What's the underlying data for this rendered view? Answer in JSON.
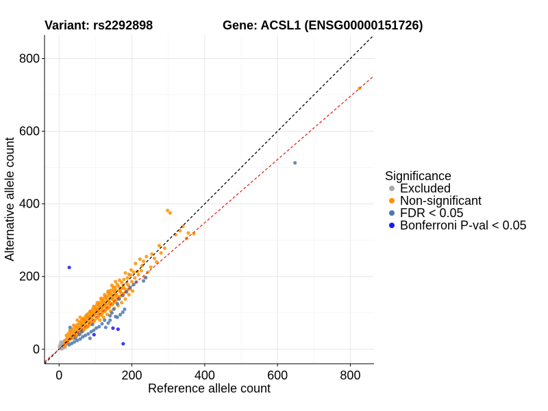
{
  "chart_data": {
    "type": "scatter",
    "title_variant": "Variant: rs2292898",
    "title_gene": "Gene: ACSL1 (ENSG00000151726)",
    "xlabel": "Reference allele count",
    "ylabel": "Alternative allele count",
    "xlim": [
      -40,
      865
    ],
    "ylim": [
      -40,
      865
    ],
    "xticks": [
      0,
      200,
      400,
      600,
      800
    ],
    "yticks": [
      0,
      200,
      400,
      600,
      800
    ],
    "grid": true,
    "reference_lines": [
      {
        "name": "identity",
        "slope": 1.0,
        "intercept": 0,
        "color": "#000000",
        "style": "dashed"
      },
      {
        "name": "fit",
        "slope": 0.87,
        "intercept": 0,
        "color": "#e3241b",
        "style": "dashed"
      }
    ],
    "legend": {
      "title": "Significance",
      "position": "right",
      "entries": [
        {
          "label": "Excluded",
          "color": "#aaaaaa"
        },
        {
          "label": "Non-significant",
          "color": "#ff9100"
        },
        {
          "label": "FDR < 0.05",
          "color": "#4a78b0"
        },
        {
          "label": "Bonferroni P-val < 0.05",
          "color": "#1a1aee"
        }
      ]
    },
    "series": [
      {
        "name": "Excluded",
        "color": "#aaaaaa",
        "points": [
          [
            2,
            3
          ],
          [
            4,
            6
          ],
          [
            6,
            2
          ],
          [
            8,
            10
          ],
          [
            10,
            5
          ],
          [
            12,
            14
          ],
          [
            14,
            9
          ],
          [
            3,
            12
          ],
          [
            16,
            18
          ],
          [
            18,
            12
          ],
          [
            5,
            20
          ],
          [
            20,
            22
          ],
          [
            7,
            1
          ],
          [
            22,
            15
          ],
          [
            1,
            8
          ],
          [
            9,
            16
          ],
          [
            11,
            3
          ],
          [
            13,
            21
          ],
          [
            17,
            6
          ],
          [
            19,
            25
          ]
        ]
      },
      {
        "name": "Non-significant",
        "color": "#ff9100",
        "points": [
          [
            825,
            718
          ],
          [
            370,
            318
          ],
          [
            355,
            320
          ],
          [
            350,
            305
          ],
          [
            305,
            375
          ],
          [
            298,
            382
          ],
          [
            275,
            285
          ],
          [
            262,
            250
          ],
          [
            255,
            262
          ],
          [
            240,
            255
          ],
          [
            232,
            242
          ],
          [
            228,
            230
          ],
          [
            222,
            248
          ],
          [
            215,
            214
          ],
          [
            210,
            236
          ],
          [
            205,
            212
          ],
          [
            198,
            218
          ],
          [
            196,
            204
          ],
          [
            192,
            206
          ],
          [
            188,
            196
          ],
          [
            186,
            182
          ],
          [
            182,
            210
          ],
          [
            178,
            192
          ],
          [
            176,
            175
          ],
          [
            172,
            184
          ],
          [
            170,
            166
          ],
          [
            168,
            158
          ],
          [
            166,
            190
          ],
          [
            164,
            172
          ],
          [
            160,
            178
          ],
          [
            158,
            150
          ],
          [
            156,
            162
          ],
          [
            154,
            170
          ],
          [
            152,
            146
          ],
          [
            150,
            158
          ],
          [
            148,
            172
          ],
          [
            146,
            138
          ],
          [
            144,
            150
          ],
          [
            142,
            162
          ],
          [
            140,
            140
          ],
          [
            138,
            130
          ],
          [
            136,
            148
          ],
          [
            134,
            156
          ],
          [
            132,
            124
          ],
          [
            130,
            138
          ],
          [
            128,
            146
          ],
          [
            126,
            120
          ],
          [
            124,
            130
          ],
          [
            122,
            140
          ],
          [
            120,
            114
          ],
          [
            118,
            126
          ],
          [
            116,
            136
          ],
          [
            114,
            108
          ],
          [
            112,
            118
          ],
          [
            110,
            128
          ],
          [
            108,
            104
          ],
          [
            106,
            112
          ],
          [
            104,
            122
          ],
          [
            102,
            98
          ],
          [
            100,
            108
          ],
          [
            98,
            116
          ],
          [
            96,
            92
          ],
          [
            94,
            102
          ],
          [
            92,
            110
          ],
          [
            90,
            86
          ],
          [
            88,
            96
          ],
          [
            86,
            104
          ],
          [
            84,
            80
          ],
          [
            82,
            90
          ],
          [
            80,
            98
          ],
          [
            78,
            76
          ],
          [
            76,
            84
          ],
          [
            74,
            92
          ],
          [
            72,
            70
          ],
          [
            70,
            78
          ],
          [
            68,
            86
          ],
          [
            66,
            64
          ],
          [
            64,
            72
          ],
          [
            62,
            80
          ],
          [
            60,
            58
          ],
          [
            58,
            66
          ],
          [
            56,
            74
          ],
          [
            54,
            52
          ],
          [
            52,
            60
          ],
          [
            50,
            68
          ],
          [
            48,
            46
          ],
          [
            46,
            54
          ],
          [
            44,
            62
          ],
          [
            42,
            40
          ],
          [
            40,
            48
          ],
          [
            38,
            56
          ],
          [
            36,
            34
          ],
          [
            34,
            42
          ],
          [
            32,
            50
          ],
          [
            30,
            28
          ],
          [
            28,
            36
          ],
          [
            26,
            44
          ],
          [
            24,
            22
          ],
          [
            22,
            30
          ],
          [
            20,
            38
          ],
          [
            18,
            16
          ],
          [
            16,
            24
          ],
          [
            45,
            38
          ],
          [
            55,
            44
          ],
          [
            65,
            50
          ],
          [
            75,
            60
          ],
          [
            85,
            68
          ],
          [
            95,
            76
          ],
          [
            105,
            86
          ],
          [
            115,
            94
          ],
          [
            125,
            104
          ],
          [
            135,
            112
          ],
          [
            145,
            122
          ],
          [
            155,
            130
          ],
          [
            165,
            140
          ],
          [
            175,
            148
          ],
          [
            185,
            158
          ],
          [
            195,
            166
          ],
          [
            65,
            82
          ],
          [
            75,
            94
          ],
          [
            85,
            104
          ],
          [
            95,
            118
          ],
          [
            105,
            128
          ],
          [
            115,
            140
          ],
          [
            125,
            150
          ],
          [
            135,
            160
          ],
          [
            145,
            176
          ],
          [
            155,
            186
          ],
          [
            60,
            70
          ],
          [
            70,
            80
          ],
          [
            80,
            88
          ],
          [
            90,
            100
          ],
          [
            100,
            110
          ],
          [
            110,
            120
          ],
          [
            120,
            132
          ],
          [
            130,
            144
          ],
          [
            140,
            154
          ],
          [
            150,
            166
          ],
          [
            38,
            30
          ],
          [
            48,
            36
          ],
          [
            58,
            42
          ],
          [
            68,
            54
          ],
          [
            78,
            62
          ],
          [
            88,
            72
          ],
          [
            98,
            80
          ],
          [
            108,
            90
          ],
          [
            118,
            98
          ],
          [
            128,
            108
          ],
          [
            138,
            116
          ],
          [
            148,
            126
          ],
          [
            158,
            136
          ],
          [
            168,
            146
          ],
          [
            178,
            154
          ],
          [
            188,
            164
          ],
          [
            110,
            96
          ],
          [
            120,
            104
          ],
          [
            130,
            114
          ],
          [
            140,
            126
          ],
          [
            150,
            136
          ],
          [
            160,
            144
          ],
          [
            170,
            156
          ],
          [
            180,
            166
          ],
          [
            190,
            176
          ],
          [
            200,
            186
          ],
          [
            86,
            90
          ],
          [
            96,
            98
          ],
          [
            106,
            106
          ],
          [
            116,
            116
          ],
          [
            126,
            124
          ],
          [
            136,
            134
          ],
          [
            146,
            142
          ],
          [
            156,
            152
          ],
          [
            166,
            162
          ],
          [
            176,
            170
          ],
          [
            208,
            196
          ],
          [
            218,
            205
          ],
          [
            226,
            216
          ],
          [
            236,
            198
          ],
          [
            244,
            212
          ],
          [
            252,
            226
          ],
          [
            268,
            240
          ],
          [
            280,
            265
          ],
          [
            290,
            278
          ],
          [
            320,
            315
          ],
          [
            332,
            326
          ],
          [
            340,
            338
          ],
          [
            112,
            80
          ],
          [
            122,
            88
          ],
          [
            132,
            96
          ],
          [
            142,
            104
          ],
          [
            152,
            112
          ],
          [
            162,
            120
          ],
          [
            172,
            128
          ],
          [
            182,
            138
          ],
          [
            192,
            150
          ],
          [
            202,
            160
          ],
          [
            50,
            80
          ],
          [
            58,
            88
          ],
          [
            40,
            66
          ],
          [
            30,
            52
          ],
          [
            35,
            30
          ],
          [
            25,
            18
          ],
          [
            15,
            10
          ],
          [
            60,
            48
          ],
          [
            70,
            56
          ],
          [
            80,
            64
          ]
        ]
      },
      {
        "name": "FDR < 0.05",
        "color": "#4a78b0",
        "points": [
          [
            648,
            513
          ],
          [
            238,
            197
          ],
          [
            232,
            188
          ],
          [
            212,
            185
          ],
          [
            205,
            178
          ],
          [
            195,
            170
          ],
          [
            185,
            158
          ],
          [
            175,
            148
          ],
          [
            165,
            138
          ],
          [
            160,
            125
          ],
          [
            150,
            110
          ],
          [
            145,
            100
          ],
          [
            140,
            92
          ],
          [
            175,
            102
          ],
          [
            168,
            95
          ],
          [
            160,
            88
          ],
          [
            180,
            110
          ],
          [
            135,
            72
          ],
          [
            125,
            80
          ],
          [
            118,
            70
          ],
          [
            110,
            62
          ],
          [
            102,
            58
          ],
          [
            95,
            52
          ],
          [
            88,
            48
          ],
          [
            80,
            42
          ],
          [
            72,
            38
          ],
          [
            65,
            34
          ],
          [
            58,
            28
          ],
          [
            50,
            24
          ],
          [
            42,
            20
          ],
          [
            35,
            16
          ],
          [
            28,
            12
          ],
          [
            45,
            30
          ],
          [
            55,
            40
          ],
          [
            62,
            48
          ],
          [
            140,
            80
          ],
          [
            155,
            90
          ],
          [
            128,
            60
          ],
          [
            30,
            60
          ],
          [
            85,
            30
          ],
          [
            92,
            68
          ]
        ]
      },
      {
        "name": "Bonferroni P-val < 0.05",
        "color": "#1a1aee",
        "points": [
          [
            28,
            225
          ],
          [
            148,
            58
          ],
          [
            162,
            55
          ],
          [
            176,
            15
          ],
          [
            96,
            40
          ]
        ]
      }
    ]
  }
}
